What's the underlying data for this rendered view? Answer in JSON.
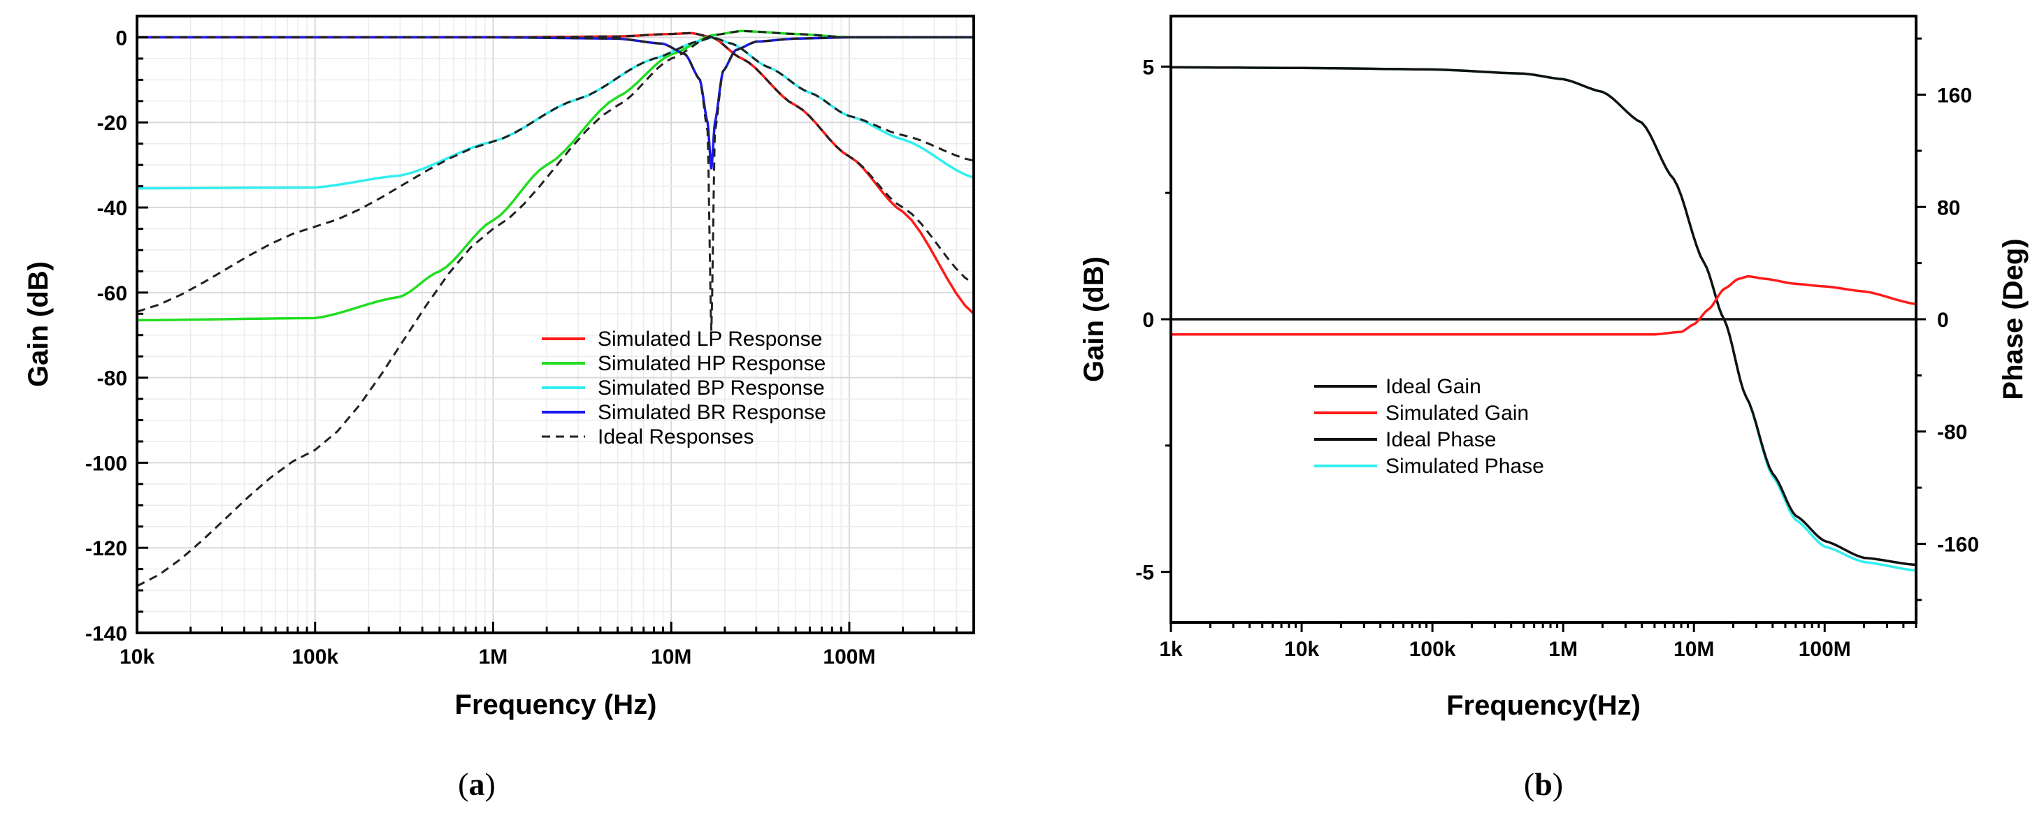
{
  "chart_data": [
    {
      "type": "line",
      "panel": "a",
      "caption_open": "(",
      "caption_letter": "a",
      "caption_close": ")",
      "xlabel": "Frequency (Hz)",
      "ylabel": "Gain (dB)",
      "xscale": "log",
      "xlim": [
        10000,
        500000000
      ],
      "ylim": [
        -140,
        5
      ],
      "x_ticks": [
        10000,
        100000,
        1000000,
        10000000,
        100000000
      ],
      "x_tick_labels": [
        "10k",
        "100k",
        "1M",
        "10M",
        "100M"
      ],
      "y_ticks": [
        0,
        -20,
        -40,
        -60,
        -80,
        -100,
        -120,
        -140
      ],
      "y_tick_labels": [
        "0",
        "-20",
        "-40",
        "-60",
        "-80",
        "-100",
        "-120",
        "-140"
      ],
      "grid": true,
      "legend_position": "bottom-right",
      "series": [
        {
          "name": "Simulated LP Response",
          "color": "#ff1a1a",
          "dash": false,
          "x": [
            10000,
            100000,
            1000000,
            5000000,
            10000000,
            13000000,
            17000000,
            25000000,
            50000000,
            100000000,
            200000000,
            500000000
          ],
          "y": [
            0,
            0,
            0,
            0.2,
            0.8,
            1,
            0,
            -5,
            -16,
            -28,
            -41,
            -65
          ]
        },
        {
          "name": "Simulated HP Response",
          "color": "#22dd22",
          "dash": false,
          "x": [
            10000,
            100000,
            300000,
            500000,
            1000000,
            2000000,
            5000000,
            10000000,
            17000000,
            25000000,
            50000000,
            100000000,
            500000000
          ],
          "y": [
            -66.5,
            -66,
            -61,
            -55,
            -43,
            -30,
            -14,
            -4,
            0.5,
            1.5,
            0.8,
            0,
            0
          ]
        },
        {
          "name": "Simulated BP Response",
          "color": "#33eeee",
          "dash": false,
          "x": [
            10000,
            100000,
            300000,
            1000000,
            3000000,
            8000000,
            14000000,
            17000000,
            22000000,
            35000000,
            60000000,
            100000000,
            200000000,
            500000000
          ],
          "y": [
            -35.5,
            -35.3,
            -32.5,
            -24.5,
            -14.5,
            -5,
            -1,
            0,
            -1.5,
            -7,
            -13,
            -18.5,
            -24,
            -33
          ]
        },
        {
          "name": "Simulated BR Response",
          "color": "#1a1aee",
          "dash": false,
          "x": [
            10000,
            1000000,
            5000000,
            9000000,
            12000000,
            14500000,
            16000000,
            16800000,
            17600000,
            19500000,
            23000000,
            30000000,
            50000000,
            100000000,
            500000000
          ],
          "y": [
            0,
            0,
            -0.3,
            -1.5,
            -4,
            -10,
            -20,
            -31,
            -20,
            -8,
            -3,
            -1,
            -0.3,
            0,
            0
          ]
        },
        {
          "name": "Ideal Responses",
          "color": "#222222",
          "dash": true,
          "group": [
            {
              "x": [
                10000,
                1000000,
                5000000,
                10000000,
                13000000,
                17000000,
                25000000,
                50000000,
                100000000,
                200000000,
                500000000
              ],
              "y": [
                0,
                0,
                0.2,
                0.8,
                1,
                0,
                -5,
                -16,
                -28,
                -40,
                -58
              ]
            },
            {
              "x": [
                10000,
                100000,
                1000000,
                5000000,
                10000000,
                17000000,
                25000000,
                50000000,
                100000000,
                500000000
              ],
              "y": [
                -129,
                -97,
                -45,
                -16,
                -5,
                0.5,
                1.5,
                0.8,
                0,
                0
              ]
            },
            {
              "x": [
                10000,
                100000,
                1000000,
                3000000,
                8000000,
                14000000,
                17000000,
                22000000,
                35000000,
                60000000,
                100000000,
                200000000,
                500000000
              ],
              "y": [
                -64.5,
                -44.5,
                -24.5,
                -14.5,
                -5,
                -1,
                0,
                -1.5,
                -7,
                -13,
                -18.5,
                -23,
                -29
              ]
            },
            {
              "x": [
                10000,
                1000000,
                5000000,
                9000000,
                12000000,
                14500000,
                16000000,
                16800000,
                17600000,
                19500000,
                23000000,
                30000000,
                50000000,
                100000000,
                500000000
              ],
              "y": [
                0,
                0,
                -0.3,
                -1.5,
                -4,
                -10,
                -22,
                -69,
                -22,
                -8,
                -3,
                -1,
                -0.3,
                0,
                0
              ]
            }
          ]
        }
      ]
    },
    {
      "type": "line",
      "panel": "b",
      "caption_open": "(",
      "caption_letter": "b",
      "caption_close": ")",
      "xlabel": "Frequency(Hz)",
      "ylabel": "Gain (dB)",
      "y2label": "Phase (Deg)",
      "xscale": "log",
      "xlim": [
        1000,
        500000000
      ],
      "ylim": [
        -6,
        6
      ],
      "y2lim": [
        -216,
        216
      ],
      "x_ticks": [
        1000,
        10000,
        100000,
        1000000,
        10000000,
        100000000
      ],
      "x_tick_labels": [
        "1k",
        "10k",
        "100k",
        "1M",
        "10M",
        "100M"
      ],
      "y_ticks": [
        5,
        0,
        -5
      ],
      "y_tick_labels": [
        "5",
        "0",
        "-5"
      ],
      "y2_ticks": [
        160,
        80,
        0,
        -80,
        -160
      ],
      "y2_tick_labels": [
        "160",
        "80",
        "0",
        "-80",
        "-160"
      ],
      "grid": false,
      "legend_position": "bottom-left",
      "series": [
        {
          "name": "Ideal Gain",
          "color": "#111111",
          "axis": "left",
          "x": [
            1000,
            500000000
          ],
          "y": [
            0,
            0
          ]
        },
        {
          "name": "Simulated Gain",
          "color": "#ff1a1a",
          "axis": "left",
          "x": [
            1000,
            100000,
            1000000,
            5000000,
            8000000,
            10000000,
            13000000,
            17000000,
            22000000,
            26000000,
            35000000,
            60000000,
            100000000,
            200000000,
            500000000
          ],
          "y": [
            -0.3,
            -0.3,
            -0.3,
            -0.3,
            -0.25,
            -0.1,
            0.2,
            0.6,
            0.8,
            0.85,
            0.8,
            0.7,
            0.65,
            0.55,
            0.3
          ]
        },
        {
          "name": "Ideal Phase",
          "color": "#111111",
          "axis": "right",
          "x": [
            1000,
            10000,
            100000,
            500000,
            1000000,
            2000000,
            4000000,
            7000000,
            12000000,
            17000000,
            25000000,
            40000000,
            60000000,
            100000000,
            200000000,
            500000000
          ],
          "y": [
            179.5,
            179,
            178,
            175,
            171,
            162,
            140,
            100,
            40,
            0,
            -55,
            -110,
            -140,
            -158,
            -170,
            -175
          ]
        },
        {
          "name": "Simulated Phase",
          "color": "#33eeee",
          "axis": "right",
          "x": [
            1000,
            10000,
            100000,
            500000,
            1000000,
            2000000,
            4000000,
            7000000,
            12000000,
            17000000,
            25000000,
            40000000,
            60000000,
            100000000,
            200000000,
            500000000
          ],
          "y": [
            179.5,
            179,
            178,
            175,
            171,
            162,
            140,
            100,
            40,
            0,
            -55,
            -112,
            -143,
            -162,
            -173,
            -179
          ]
        }
      ]
    }
  ]
}
